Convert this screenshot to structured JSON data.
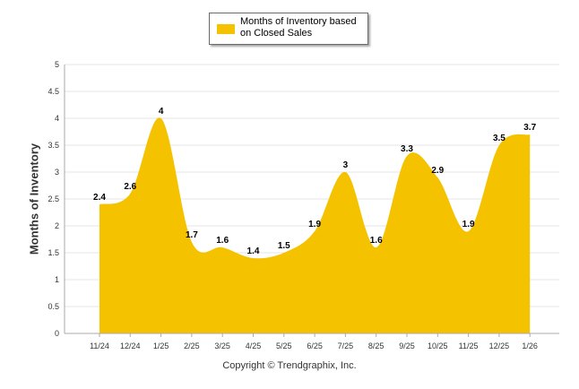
{
  "chart_data": {
    "type": "area",
    "title": "",
    "xlabel": "",
    "ylabel": "Months of Inventory",
    "ylim": [
      0,
      5
    ],
    "yticks": [
      "0",
      "0.5",
      "1",
      "1.5",
      "2",
      "2.5",
      "3",
      "3.5",
      "4",
      "4.5",
      "5"
    ],
    "grid": true,
    "legend": "top-center",
    "categories": [
      "11/24",
      "12/24",
      "1/25",
      "2/25",
      "3/25",
      "4/25",
      "5/25",
      "6/25",
      "7/25",
      "8/25",
      "9/25",
      "10/25",
      "11/25",
      "12/25",
      "1/26"
    ],
    "series": [
      {
        "name": "Months of Inventory based on Closed Sales",
        "color": "#f5c200",
        "values": [
          2.4,
          2.6,
          4,
          1.7,
          1.6,
          1.4,
          1.5,
          1.9,
          3,
          1.6,
          3.3,
          2.9,
          1.9,
          3.5,
          3.7
        ],
        "labels": [
          "2.4",
          "2.6",
          "4",
          "1.7",
          "1.6",
          "1.4",
          "1.5",
          "1.9",
          "3",
          "1.6",
          "3.3",
          "2.9",
          "1.9",
          "3.5",
          "3.7"
        ]
      }
    ]
  },
  "legend": {
    "label": "Months of Inventory based on Closed Sales"
  },
  "footer": "Copyright © Trendgraphix, Inc."
}
